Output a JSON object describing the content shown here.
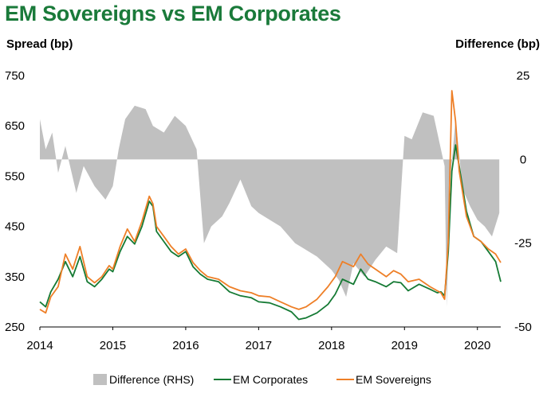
{
  "title": "EM Sovereigns vs EM Corporates",
  "left_axis_title": "Spread (bp)",
  "right_axis_title": "Difference (bp)",
  "colors": {
    "title": "#1a7a3a",
    "difference": "#c0c0c0",
    "corporates": "#157a34",
    "sovereigns": "#ee7f27"
  },
  "chart_data": {
    "type": "line",
    "x_ticks": [
      "2014",
      "2015",
      "2016",
      "2017",
      "2018",
      "2019",
      "2020"
    ],
    "xlim": [
      2014.0,
      2020.32
    ],
    "y_left": {
      "label": "Spread (bp)",
      "ylim": [
        250,
        750
      ],
      "ticks": [
        250,
        350,
        450,
        550,
        650,
        750
      ]
    },
    "y_right": {
      "label": "Difference (bp)",
      "ylim": [
        -50,
        25
      ],
      "ticks": [
        -50,
        -25,
        0,
        25
      ]
    },
    "grid": false,
    "legend_position": "bottom",
    "legend": [
      "Difference (RHS)",
      "EM Corporates",
      "EM Sovereigns"
    ],
    "series": [
      {
        "name": "Difference (RHS)",
        "type": "area",
        "axis": "right",
        "x": [
          2014.0,
          2014.08,
          2014.17,
          2014.25,
          2014.35,
          2014.5,
          2014.6,
          2014.75,
          2014.9,
          2015.0,
          2015.08,
          2015.17,
          2015.3,
          2015.45,
          2015.55,
          2015.7,
          2015.85,
          2016.0,
          2016.15,
          2016.25,
          2016.35,
          2016.5,
          2016.6,
          2016.75,
          2016.9,
          2017.0,
          2017.15,
          2017.3,
          2017.5,
          2017.65,
          2017.8,
          2018.0,
          2018.1,
          2018.2,
          2018.3,
          2018.45,
          2018.6,
          2018.75,
          2018.9,
          2019.0,
          2019.1,
          2019.25,
          2019.4,
          2019.5,
          2019.55,
          2019.58,
          2019.62,
          2019.7,
          2019.8,
          2019.9,
          2020.0,
          2020.1,
          2020.2,
          2020.3
        ],
        "values": [
          12,
          3,
          8,
          -4,
          4,
          -10,
          -2,
          -8,
          -12,
          -8,
          3,
          12,
          16,
          15,
          10,
          8,
          13,
          10,
          3,
          -25,
          -20,
          -17,
          -13,
          -6,
          -14,
          -16,
          -18,
          -20,
          -25,
          -27,
          -29,
          -33,
          -36,
          -41,
          -31,
          -35,
          -30,
          -26,
          -28,
          7,
          6,
          14,
          13,
          3,
          -2,
          -44,
          -8,
          12,
          -9,
          -14,
          -18,
          -20,
          -23,
          -16
        ]
      },
      {
        "name": "EM Corporates",
        "type": "line",
        "axis": "left",
        "x": [
          2014.0,
          2014.08,
          2014.15,
          2014.25,
          2014.35,
          2014.45,
          2014.55,
          2014.65,
          2014.75,
          2014.85,
          2014.95,
          2015.0,
          2015.1,
          2015.2,
          2015.3,
          2015.4,
          2015.5,
          2015.55,
          2015.6,
          2015.7,
          2015.8,
          2015.9,
          2016.0,
          2016.1,
          2016.2,
          2016.3,
          2016.45,
          2016.6,
          2016.75,
          2016.9,
          2017.0,
          2017.15,
          2017.3,
          2017.45,
          2017.55,
          2017.65,
          2017.8,
          2017.95,
          2018.05,
          2018.15,
          2018.3,
          2018.4,
          2018.5,
          2018.6,
          2018.75,
          2018.85,
          2018.95,
          2019.05,
          2019.2,
          2019.35,
          2019.45,
          2019.5,
          2019.55,
          2019.6,
          2019.65,
          2019.7,
          2019.75,
          2019.85,
          2019.95,
          2020.05,
          2020.15,
          2020.25,
          2020.32
        ],
        "values": [
          300,
          290,
          320,
          345,
          380,
          350,
          390,
          340,
          330,
          345,
          365,
          360,
          400,
          430,
          415,
          450,
          500,
          490,
          440,
          420,
          400,
          390,
          400,
          370,
          355,
          345,
          340,
          320,
          312,
          308,
          300,
          298,
          290,
          280,
          265,
          268,
          278,
          295,
          315,
          345,
          335,
          365,
          345,
          340,
          330,
          340,
          338,
          322,
          335,
          325,
          318,
          320,
          312,
          400,
          560,
          612,
          570,
          480,
          430,
          420,
          400,
          380,
          340
        ]
      },
      {
        "name": "EM Sovereigns",
        "type": "line",
        "axis": "left",
        "x": [
          2014.0,
          2014.08,
          2014.15,
          2014.25,
          2014.35,
          2014.45,
          2014.55,
          2014.65,
          2014.75,
          2014.85,
          2014.95,
          2015.0,
          2015.1,
          2015.2,
          2015.3,
          2015.4,
          2015.5,
          2015.55,
          2015.6,
          2015.7,
          2015.8,
          2015.9,
          2016.0,
          2016.1,
          2016.2,
          2016.3,
          2016.45,
          2016.6,
          2016.75,
          2016.9,
          2017.0,
          2017.15,
          2017.3,
          2017.45,
          2017.55,
          2017.65,
          2017.8,
          2017.95,
          2018.05,
          2018.15,
          2018.3,
          2018.4,
          2018.5,
          2018.6,
          2018.75,
          2018.85,
          2018.95,
          2019.05,
          2019.2,
          2019.35,
          2019.45,
          2019.5,
          2019.55,
          2019.6,
          2019.65,
          2019.7,
          2019.75,
          2019.85,
          2019.95,
          2020.05,
          2020.15,
          2020.25,
          2020.32
        ],
        "values": [
          285,
          278,
          310,
          330,
          395,
          365,
          410,
          350,
          338,
          350,
          372,
          365,
          410,
          445,
          420,
          460,
          510,
          495,
          450,
          430,
          410,
          395,
          405,
          378,
          362,
          350,
          345,
          330,
          322,
          318,
          312,
          310,
          300,
          290,
          285,
          290,
          305,
          330,
          350,
          380,
          370,
          395,
          375,
          365,
          350,
          362,
          355,
          340,
          345,
          330,
          322,
          318,
          305,
          420,
          720,
          660,
          560,
          470,
          430,
          420,
          405,
          395,
          378
        ]
      }
    ]
  }
}
